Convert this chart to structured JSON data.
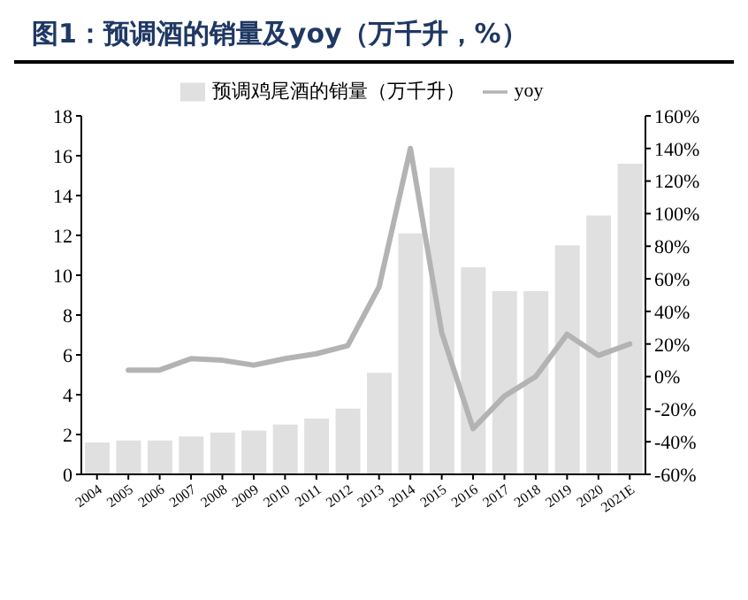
{
  "chart_data": {
    "type": "bar",
    "title": "图1：预调酒的销量及yoy（万千升，%）",
    "categories": [
      "2004",
      "2005",
      "2006",
      "2007",
      "2008",
      "2009",
      "2010",
      "2011",
      "2012",
      "2013",
      "2014",
      "2015",
      "2016",
      "2017",
      "2018",
      "2019",
      "2020",
      "2021E"
    ],
    "series": [
      {
        "name": "预调鸡尾酒的销量（万千升）",
        "color": "#e0e0e0",
        "values": [
          1.6,
          1.7,
          1.7,
          1.9,
          2.1,
          2.2,
          2.5,
          2.8,
          3.3,
          5.1,
          12.1,
          15.4,
          10.4,
          9.2,
          9.2,
          11.5,
          13.0,
          15.6
        ]
      },
      {
        "name": "yoy",
        "type": "line",
        "axis": "y2",
        "color": "#b3b3b3",
        "values": [
          null,
          4,
          4,
          11,
          10,
          7,
          11,
          14,
          19,
          55,
          140,
          27,
          -32,
          -12,
          0,
          26,
          13,
          20
        ]
      }
    ],
    "ylim": [
      0,
      18
    ],
    "yticks": [
      0,
      2,
      4,
      6,
      8,
      10,
      12,
      14,
      16,
      18
    ],
    "y2lim": [
      -60,
      160
    ],
    "y2ticks": [
      {
        "value": -60,
        "label": "-60%"
      },
      {
        "value": -40,
        "label": "-40%"
      },
      {
        "value": -20,
        "label": "-20%"
      },
      {
        "value": 0,
        "label": "0%"
      },
      {
        "value": 20,
        "label": "20%"
      },
      {
        "value": 40,
        "label": "40%"
      },
      {
        "value": 60,
        "label": "60%"
      },
      {
        "value": 80,
        "label": "80%"
      },
      {
        "value": 100,
        "label": "100%"
      },
      {
        "value": 120,
        "label": "120%"
      },
      {
        "value": 140,
        "label": "140%"
      },
      {
        "value": 160,
        "label": "160%"
      }
    ],
    "grid": false,
    "legend": "top",
    "marker": "none",
    "line_style": "solid"
  }
}
